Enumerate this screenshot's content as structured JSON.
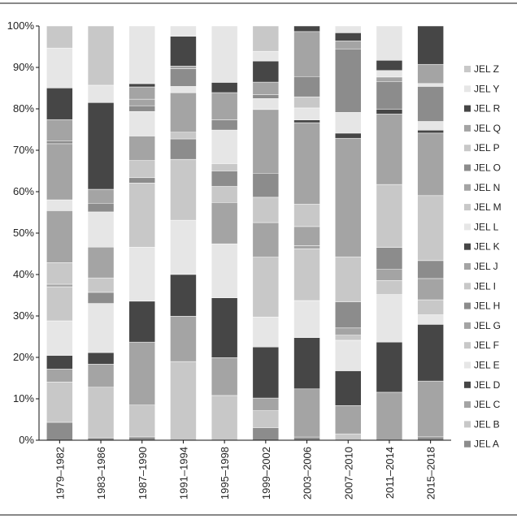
{
  "chart_data": {
    "type": "bar",
    "stacked": true,
    "percent_stacked": true,
    "categories": [
      "1979–1982",
      "1983–1986",
      "1987–1990",
      "1991–1994",
      "1995–1998",
      "1999–2002",
      "2003–2006",
      "2007–2010",
      "2011–2014",
      "2015–2018"
    ],
    "ylim": [
      0,
      100
    ],
    "y_tick_labels": [
      "0%",
      "10%",
      "20%",
      "30%",
      "40%",
      "50%",
      "60%",
      "70%",
      "80%",
      "90%",
      "100%"
    ],
    "legend_position": "right",
    "grid": false,
    "series": [
      {
        "name": "JEL A",
        "color": "#8c8c8c",
        "values": [
          4.3,
          0.5,
          0.8,
          0,
          0,
          3,
          0.8,
          0,
          0,
          0.8
        ]
      },
      {
        "name": "JEL B",
        "color": "#c8c8c8",
        "values": [
          9.7,
          10.5,
          7.8,
          17.7,
          9.2,
          4,
          0,
          1.5,
          0,
          0
        ]
      },
      {
        "name": "JEL C",
        "color": "#a4a4a4",
        "values": [
          3.1,
          4.8,
          15.4,
          10.2,
          7.8,
          3,
          12.1,
          6.7,
          10.9,
          13.4
        ]
      },
      {
        "name": "JEL D",
        "color": "#464646",
        "values": [
          3.3,
          2.4,
          10,
          9.4,
          12.3,
          12.1,
          12.9,
          8.2,
          11.4,
          13.6
        ]
      },
      {
        "name": "JEL E",
        "color": "#e6e6e6",
        "values": [
          8.3,
          10.2,
          13.2,
          12.2,
          11.1,
          7.1,
          9.3,
          7.2,
          10.8,
          2.3
        ]
      },
      {
        "name": "JEL F",
        "color": "#c8c8c8",
        "values": [
          8.2,
          0,
          0,
          0,
          0,
          14.2,
          13,
          1.2,
          3.2,
          3.6
        ]
      },
      {
        "name": "JEL G",
        "color": "#a4a4a4",
        "values": [
          0.6,
          0,
          0,
          0,
          0,
          0,
          0.8,
          1.7,
          2.5,
          5.1
        ]
      },
      {
        "name": "JEL H",
        "color": "#8c8c8c",
        "values": [
          0,
          2.3,
          0,
          0,
          0,
          0,
          0,
          6.2,
          5,
          4.3
        ]
      },
      {
        "name": "JEL I",
        "color": "#c8c8c8",
        "values": [
          5.2,
          3,
          0,
          0,
          0,
          0,
          0,
          10.6,
          0,
          0
        ]
      },
      {
        "name": "JEL J",
        "color": "#a4a4a4",
        "values": [
          12.5,
          6.4,
          0,
          0,
          8.5,
          8.2,
          4.8,
          0,
          0,
          0
        ]
      },
      {
        "name": "JEL K",
        "color": "#464646",
        "values": [
          0,
          0,
          0,
          0,
          0,
          0,
          0,
          0,
          0,
          0
        ]
      },
      {
        "name": "JEL L",
        "color": "#e6e6e6",
        "values": [
          2.6,
          7.3,
          0,
          0,
          0,
          0,
          0,
          0,
          0,
          0
        ]
      },
      {
        "name": "JEL M",
        "color": "#c8c8c8",
        "values": [
          0,
          0,
          15.7,
          13.7,
          3.3,
          6,
          5.6,
          0,
          14.3,
          15.6
        ]
      },
      {
        "name": "JEL N",
        "color": "#a4a4a4",
        "values": [
          13.5,
          0,
          0,
          0,
          0,
          0,
          0,
          0,
          0,
          0
        ]
      },
      {
        "name": "JEL O",
        "color": "#8c8c8c",
        "values": [
          0.7,
          1.8,
          1.3,
          4.6,
          3.2,
          5.7,
          0,
          0,
          0,
          0
        ]
      },
      {
        "name": "JEL P",
        "color": "#c8c8c8",
        "values": [
          0,
          0,
          4.2,
          1.5,
          1.5,
          0,
          0,
          0,
          0,
          0
        ]
      },
      {
        "name": "JEL Q",
        "color": "#a4a4a4",
        "values": [
          5.1,
          2.9,
          6,
          8.9,
          0,
          15.1,
          20.5,
          28,
          16,
          15
        ]
      },
      {
        "name": "JEL R",
        "color": "#464646",
        "values": [
          0,
          0,
          0,
          0,
          0,
          0,
          0.7,
          1.2,
          1.1,
          0.7
        ]
      },
      {
        "name": "JEL Y",
        "color": "#e6e6e6",
        "values": [
          0,
          0,
          6,
          1.4,
          6.9,
          2.6,
          3,
          4.9,
          0,
          2.1
        ]
      },
      {
        "name": "JEL Z",
        "color": "#c8c8c8",
        "values": [
          0,
          0,
          0,
          0,
          0,
          0,
          2.8,
          0,
          0,
          0
        ]
      },
      {
        "name": "JEL O",
        "color": "#8c8c8c",
        "values": [
          0,
          0,
          1.4,
          4,
          2.1,
          0.9,
          5.1,
          15,
          6.3,
          8.4
        ]
      },
      {
        "name": "JEL N",
        "color": "#a4a4a4",
        "values": [
          0,
          0,
          1.6,
          0.6,
          0,
          0,
          0,
          0,
          1,
          0
        ]
      },
      {
        "name": "JEL L",
        "color": "#e6e6e6",
        "values": [
          0,
          0,
          0,
          0,
          0,
          0,
          0,
          0,
          1.5,
          0.7
        ]
      },
      {
        "name": "JEL J",
        "color": "#a4a4a4",
        "values": [
          0,
          0,
          3,
          0,
          5.6,
          3,
          11.3,
          1.9,
          0,
          4.6
        ]
      },
      {
        "name": "JEL K",
        "color": "#464646",
        "values": [
          7.6,
          18,
          0.8,
          6.7,
          2.1,
          5,
          1.4,
          1.9,
          2.3,
          9.2
        ]
      },
      {
        "name": "JEL H",
        "color": "#8c8c8c",
        "values": [
          0,
          0,
          0,
          0,
          0,
          0,
          0,
          0,
          0,
          0
        ]
      },
      {
        "name": "JEL Y",
        "color": "#e6e6e6",
        "values": [
          9.6,
          3.6,
          14.1,
          2.3,
          11.6,
          2.3,
          0,
          1.6,
          7.8,
          0
        ]
      },
      {
        "name": "JEL Z",
        "color": "#c8c8c8",
        "values": [
          5.3,
          12.3,
          0,
          0,
          0,
          6,
          0,
          0,
          0,
          0
        ]
      }
    ],
    "legend": [
      "JEL Z",
      "JEL Y",
      "JEL R",
      "JEL Q",
      "JEL P",
      "JEL O",
      "JEL N",
      "JEL M",
      "JEL L",
      "JEL K",
      "JEL J",
      "JEL I",
      "JEL H",
      "JEL G",
      "JEL F",
      "JEL E",
      "JEL D",
      "JEL C",
      "JEL B",
      "JEL A"
    ],
    "legend_colors": [
      "#c8c8c8",
      "#e6e6e6",
      "#464646",
      "#a4a4a4",
      "#c8c8c8",
      "#8c8c8c",
      "#a4a4a4",
      "#c8c8c8",
      "#e6e6e6",
      "#464646",
      "#a4a4a4",
      "#c8c8c8",
      "#8c8c8c",
      "#a4a4a4",
      "#c8c8c8",
      "#e6e6e6",
      "#464646",
      "#a4a4a4",
      "#c8c8c8",
      "#8c8c8c"
    ]
  }
}
